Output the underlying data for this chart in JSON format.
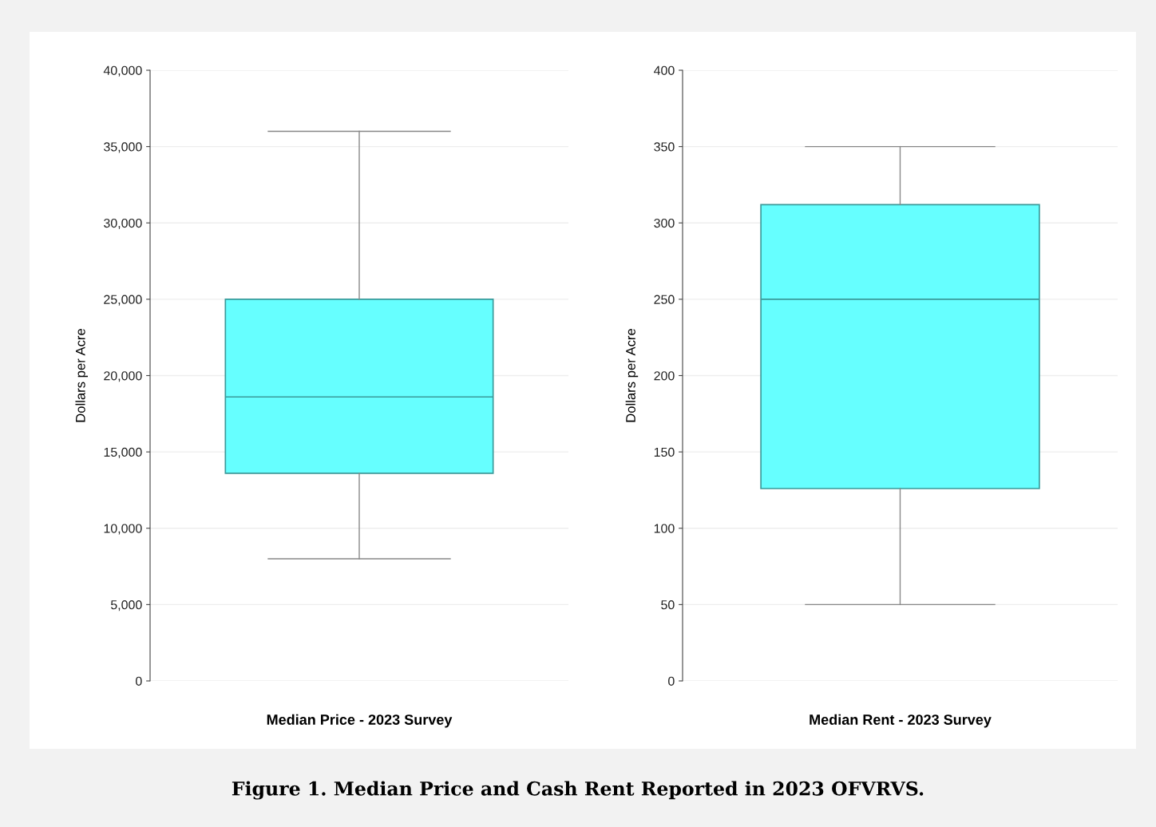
{
  "chart_data": [
    {
      "type": "box",
      "ylabel": "Dollars per Acre",
      "categories": [
        "Median Price - 2023 Survey"
      ],
      "color": "#66ffff",
      "boxes": [
        {
          "low": 8000,
          "q1": 13600,
          "median": 18600,
          "q3": 25000,
          "high": 36000
        }
      ],
      "ylim": [
        0,
        40000
      ],
      "yticks": [
        0,
        {
          "value": 5000,
          "label": "5,000"
        },
        {
          "value": 10000,
          "label": "10,000"
        },
        {
          "value": 15000,
          "label": "15,000"
        },
        {
          "value": 20000,
          "label": "20,000"
        },
        {
          "value": 25000,
          "label": "25,000"
        },
        {
          "value": 30000,
          "label": "30,000"
        },
        {
          "value": 35000,
          "label": "35,000"
        },
        {
          "value": 40000,
          "label": "40,000"
        }
      ],
      "grid": "y",
      "annotations": [
        "Figure 1. Median Price and Cash Rent Reported in 2023 OFVRVS."
      ]
    },
    {
      "type": "box",
      "ylabel": "Dollars per Acre",
      "categories": [
        "Median Rent - 2023 Survey"
      ],
      "color": "#66ffff",
      "boxes": [
        {
          "low": 50,
          "q1": 126,
          "median": 250,
          "q3": 312,
          "high": 350
        }
      ],
      "ylim": [
        0,
        400
      ],
      "yticks": [
        0,
        50,
        100,
        150,
        200,
        250,
        300,
        350,
        400
      ],
      "grid": "y"
    }
  ]
}
